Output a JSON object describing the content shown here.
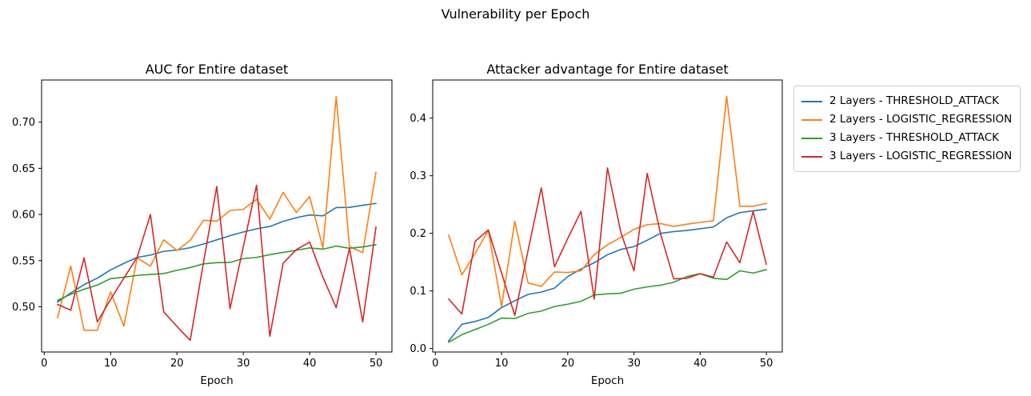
{
  "figure": {
    "suptitle": "Vulnerability per Epoch"
  },
  "colors": {
    "blue": "#1f77b4",
    "orange": "#ff7f0e",
    "green": "#2ca02c",
    "red": "#d62728",
    "axis": "#000000",
    "legend_border": "#cccccc"
  },
  "legend": {
    "position": "outside right",
    "items": [
      {
        "label": "2 Layers - THRESHOLD_ATTACK",
        "color": "blue"
      },
      {
        "label": "2 Layers - LOGISTIC_REGRESSION",
        "color": "orange"
      },
      {
        "label": "3 Layers - THRESHOLD_ATTACK",
        "color": "green"
      },
      {
        "label": "3 Layers - LOGISTIC_REGRESSION",
        "color": "red"
      }
    ]
  },
  "chart_data": [
    {
      "type": "line",
      "title": "AUC for Entire dataset",
      "xlabel": "Epoch",
      "ylabel": "",
      "grid": false,
      "xlim": [
        -0.4,
        52.4
      ],
      "ylim": [
        0.451,
        0.7457
      ],
      "xticks": [
        0,
        10,
        20,
        30,
        40,
        50
      ],
      "xtick_labels": [
        "0",
        "10",
        "20",
        "30",
        "40",
        "50"
      ],
      "yticks": [
        0.5,
        0.55,
        0.6,
        0.65,
        0.7
      ],
      "ytick_labels": [
        "0.50",
        "0.55",
        "0.60",
        "0.65",
        "0.70"
      ],
      "x": [
        2,
        4,
        6,
        8,
        10,
        12,
        14,
        16,
        18,
        20,
        22,
        24,
        26,
        28,
        30,
        32,
        34,
        36,
        38,
        40,
        42,
        44,
        46,
        48,
        50
      ],
      "series": [
        {
          "name": "2 Layers - THRESHOLD_ATTACK",
          "color": "blue",
          "values": [
            0.505,
            0.515,
            0.524,
            0.531,
            0.54,
            0.547,
            0.5535,
            0.556,
            0.56,
            0.5615,
            0.564,
            0.568,
            0.5725,
            0.577,
            0.581,
            0.5845,
            0.587,
            0.5925,
            0.5965,
            0.5995,
            0.5985,
            0.6075,
            0.6077,
            0.61,
            0.612
          ]
        },
        {
          "name": "2 Layers - LOGISTIC_REGRESSION",
          "color": "orange",
          "values": [
            0.488,
            0.544,
            0.4746,
            0.4746,
            0.516,
            0.479,
            0.553,
            0.544,
            0.5725,
            0.561,
            0.572,
            0.5937,
            0.5927,
            0.6043,
            0.6056,
            0.6164,
            0.595,
            0.624,
            0.602,
            0.6195,
            0.5638,
            0.7277,
            0.5653,
            0.5587,
            0.646
          ]
        },
        {
          "name": "3 Layers - THRESHOLD_ATTACK",
          "color": "green",
          "values": [
            0.507,
            0.5135,
            0.519,
            0.5235,
            0.5305,
            0.532,
            0.534,
            0.535,
            0.536,
            0.5395,
            0.5425,
            0.5465,
            0.5478,
            0.548,
            0.5522,
            0.5535,
            0.5565,
            0.559,
            0.5612,
            0.5638,
            0.5624,
            0.5658,
            0.5634,
            0.5648,
            0.5673
          ]
        },
        {
          "name": "3 Layers - LOGISTIC_REGRESSION",
          "color": "red",
          "values": [
            0.5026,
            0.4963,
            0.553,
            0.4835,
            0.508,
            0.531,
            0.5535,
            0.6,
            0.4945,
            0.4787,
            0.4637,
            0.548,
            0.6303,
            0.498,
            0.565,
            0.6317,
            0.468,
            0.547,
            0.562,
            0.57,
            0.532,
            0.499,
            0.5633,
            0.4836,
            0.5864
          ]
        }
      ]
    },
    {
      "type": "line",
      "title": "Attacker advantage for Entire dataset",
      "xlabel": "Epoch",
      "ylabel": "",
      "grid": false,
      "xlim": [
        -0.4,
        52.4
      ],
      "ylim": [
        -0.006,
        0.4662
      ],
      "xticks": [
        0,
        10,
        20,
        30,
        40,
        50
      ],
      "xtick_labels": [
        "0",
        "10",
        "20",
        "30",
        "40",
        "50"
      ],
      "yticks": [
        0.0,
        0.1,
        0.2,
        0.3,
        0.4
      ],
      "ytick_labels": [
        "0.0",
        "0.1",
        "0.2",
        "0.3",
        "0.4"
      ],
      "x": [
        2,
        4,
        6,
        8,
        10,
        12,
        14,
        16,
        18,
        20,
        22,
        24,
        26,
        28,
        30,
        32,
        34,
        36,
        38,
        40,
        42,
        44,
        46,
        48,
        50
      ],
      "series": [
        {
          "name": "2 Layers - THRESHOLD_ATTACK",
          "color": "blue",
          "values": [
            0.013,
            0.042,
            0.047,
            0.054,
            0.071,
            0.083,
            0.094,
            0.098,
            0.105,
            0.125,
            0.138,
            0.149,
            0.163,
            0.172,
            0.177,
            0.188,
            0.2,
            0.203,
            0.205,
            0.208,
            0.211,
            0.227,
            0.236,
            0.239,
            0.242
          ]
        },
        {
          "name": "2 Layers - LOGISTIC_REGRESSION",
          "color": "orange",
          "values": [
            0.197,
            0.128,
            0.165,
            0.205,
            0.073,
            0.221,
            0.114,
            0.108,
            0.133,
            0.132,
            0.135,
            0.163,
            0.18,
            0.193,
            0.207,
            0.215,
            0.217,
            0.212,
            0.216,
            0.219,
            0.222,
            0.438,
            0.247,
            0.247,
            0.252
          ]
        },
        {
          "name": "3 Layers - THRESHOLD_ATTACK",
          "color": "green",
          "values": [
            0.011,
            0.024,
            0.033,
            0.042,
            0.053,
            0.052,
            0.061,
            0.065,
            0.073,
            0.077,
            0.082,
            0.093,
            0.095,
            0.096,
            0.103,
            0.107,
            0.11,
            0.115,
            0.125,
            0.13,
            0.122,
            0.12,
            0.135,
            0.131,
            0.137
          ]
        },
        {
          "name": "3 Layers - LOGISTIC_REGRESSION",
          "color": "red",
          "values": [
            0.086,
            0.06,
            0.186,
            0.206,
            0.131,
            0.0575,
            0.17,
            0.279,
            0.142,
            0.191,
            0.238,
            0.086,
            0.3135,
            0.2025,
            0.135,
            0.304,
            0.2,
            0.121,
            0.122,
            0.13,
            0.124,
            0.185,
            0.149,
            0.238,
            0.146
          ]
        }
      ]
    }
  ]
}
